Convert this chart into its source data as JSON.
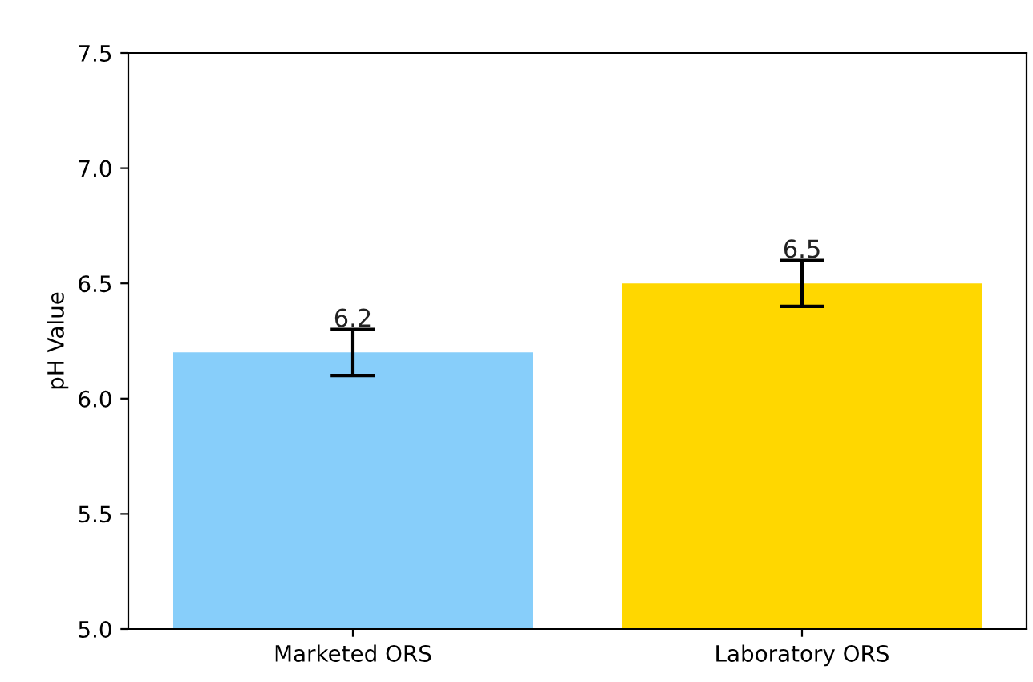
{
  "chart_data": {
    "type": "bar",
    "ylabel": "pH Value",
    "categories": [
      "Marketed ORS",
      "Laboratory ORS"
    ],
    "values": [
      6.2,
      6.5
    ],
    "colors": [
      "#87cefa",
      "#ffd700"
    ],
    "errors": [
      0.1,
      0.1
    ],
    "data_labels": true,
    "ylim": [
      5.0,
      7.5
    ],
    "yticks": [
      {
        "value": 5.0,
        "label": "5.0"
      },
      {
        "value": 5.5,
        "label": "5.5"
      },
      {
        "value": 6.0,
        "label": "6.0"
      },
      {
        "value": 6.5,
        "label": "6.5"
      },
      {
        "value": 7.0,
        "label": "7.0"
      },
      {
        "value": 7.5,
        "label": "7.5"
      }
    ],
    "grid": false
  }
}
